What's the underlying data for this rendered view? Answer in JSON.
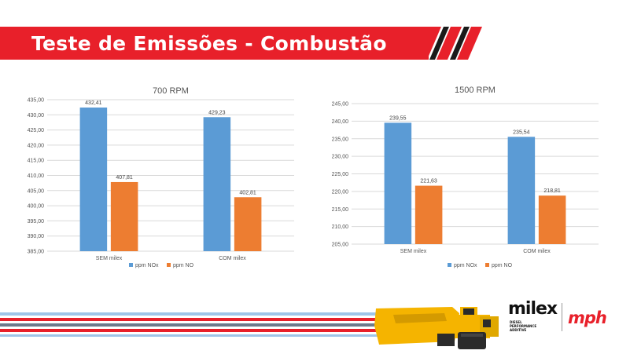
{
  "header": {
    "title": "Teste de Emissões - Combustão",
    "accent_color": "#e8202a"
  },
  "colors": {
    "nox": "#5b9bd5",
    "no": "#ed7d31",
    "grid": "#d9d9d9",
    "footer_red": "#e8202a",
    "footer_blue": "#9fc5e8",
    "footer_slate": "#6d7a8c"
  },
  "chart_data": [
    {
      "type": "bar",
      "title": "700 RPM",
      "categories": [
        "SEM milex",
        "COM milex"
      ],
      "series": [
        {
          "name": "ppm NOx",
          "values": [
            432.41,
            429.23
          ],
          "labels": [
            "432,41",
            "429,23"
          ]
        },
        {
          "name": "ppm NO",
          "values": [
            407.81,
            402.81
          ],
          "labels": [
            "407,81",
            "402,81"
          ]
        }
      ],
      "ylim": [
        385,
        435
      ],
      "yticks": [
        "385,00",
        "390,00",
        "395,00",
        "400,00",
        "405,00",
        "410,00",
        "415,00",
        "420,00",
        "425,00",
        "430,00",
        "435,00"
      ],
      "grid": true,
      "legend": "bottom"
    },
    {
      "type": "bar",
      "title": "1500 RPM",
      "categories": [
        "SEM milex",
        "COM milex"
      ],
      "series": [
        {
          "name": "ppm NOx",
          "values": [
            239.55,
            235.54
          ],
          "labels": [
            "239,55",
            "235,54"
          ]
        },
        {
          "name": "ppm NO",
          "values": [
            221.63,
            218.81
          ],
          "labels": [
            "221,63",
            "218,81"
          ]
        }
      ],
      "ylim": [
        205,
        245
      ],
      "yticks": [
        "205,00",
        "210,00",
        "215,00",
        "220,00",
        "225,00",
        "230,00",
        "235,00",
        "240,00",
        "245,00"
      ],
      "grid": true,
      "legend": "bottom"
    }
  ],
  "footer": {
    "brand": "milex",
    "brand_sub": "DIESEL PERFORMANCE ADDITIVE",
    "partner": "mph",
    "truck_icon": "mining-truck-icon"
  }
}
